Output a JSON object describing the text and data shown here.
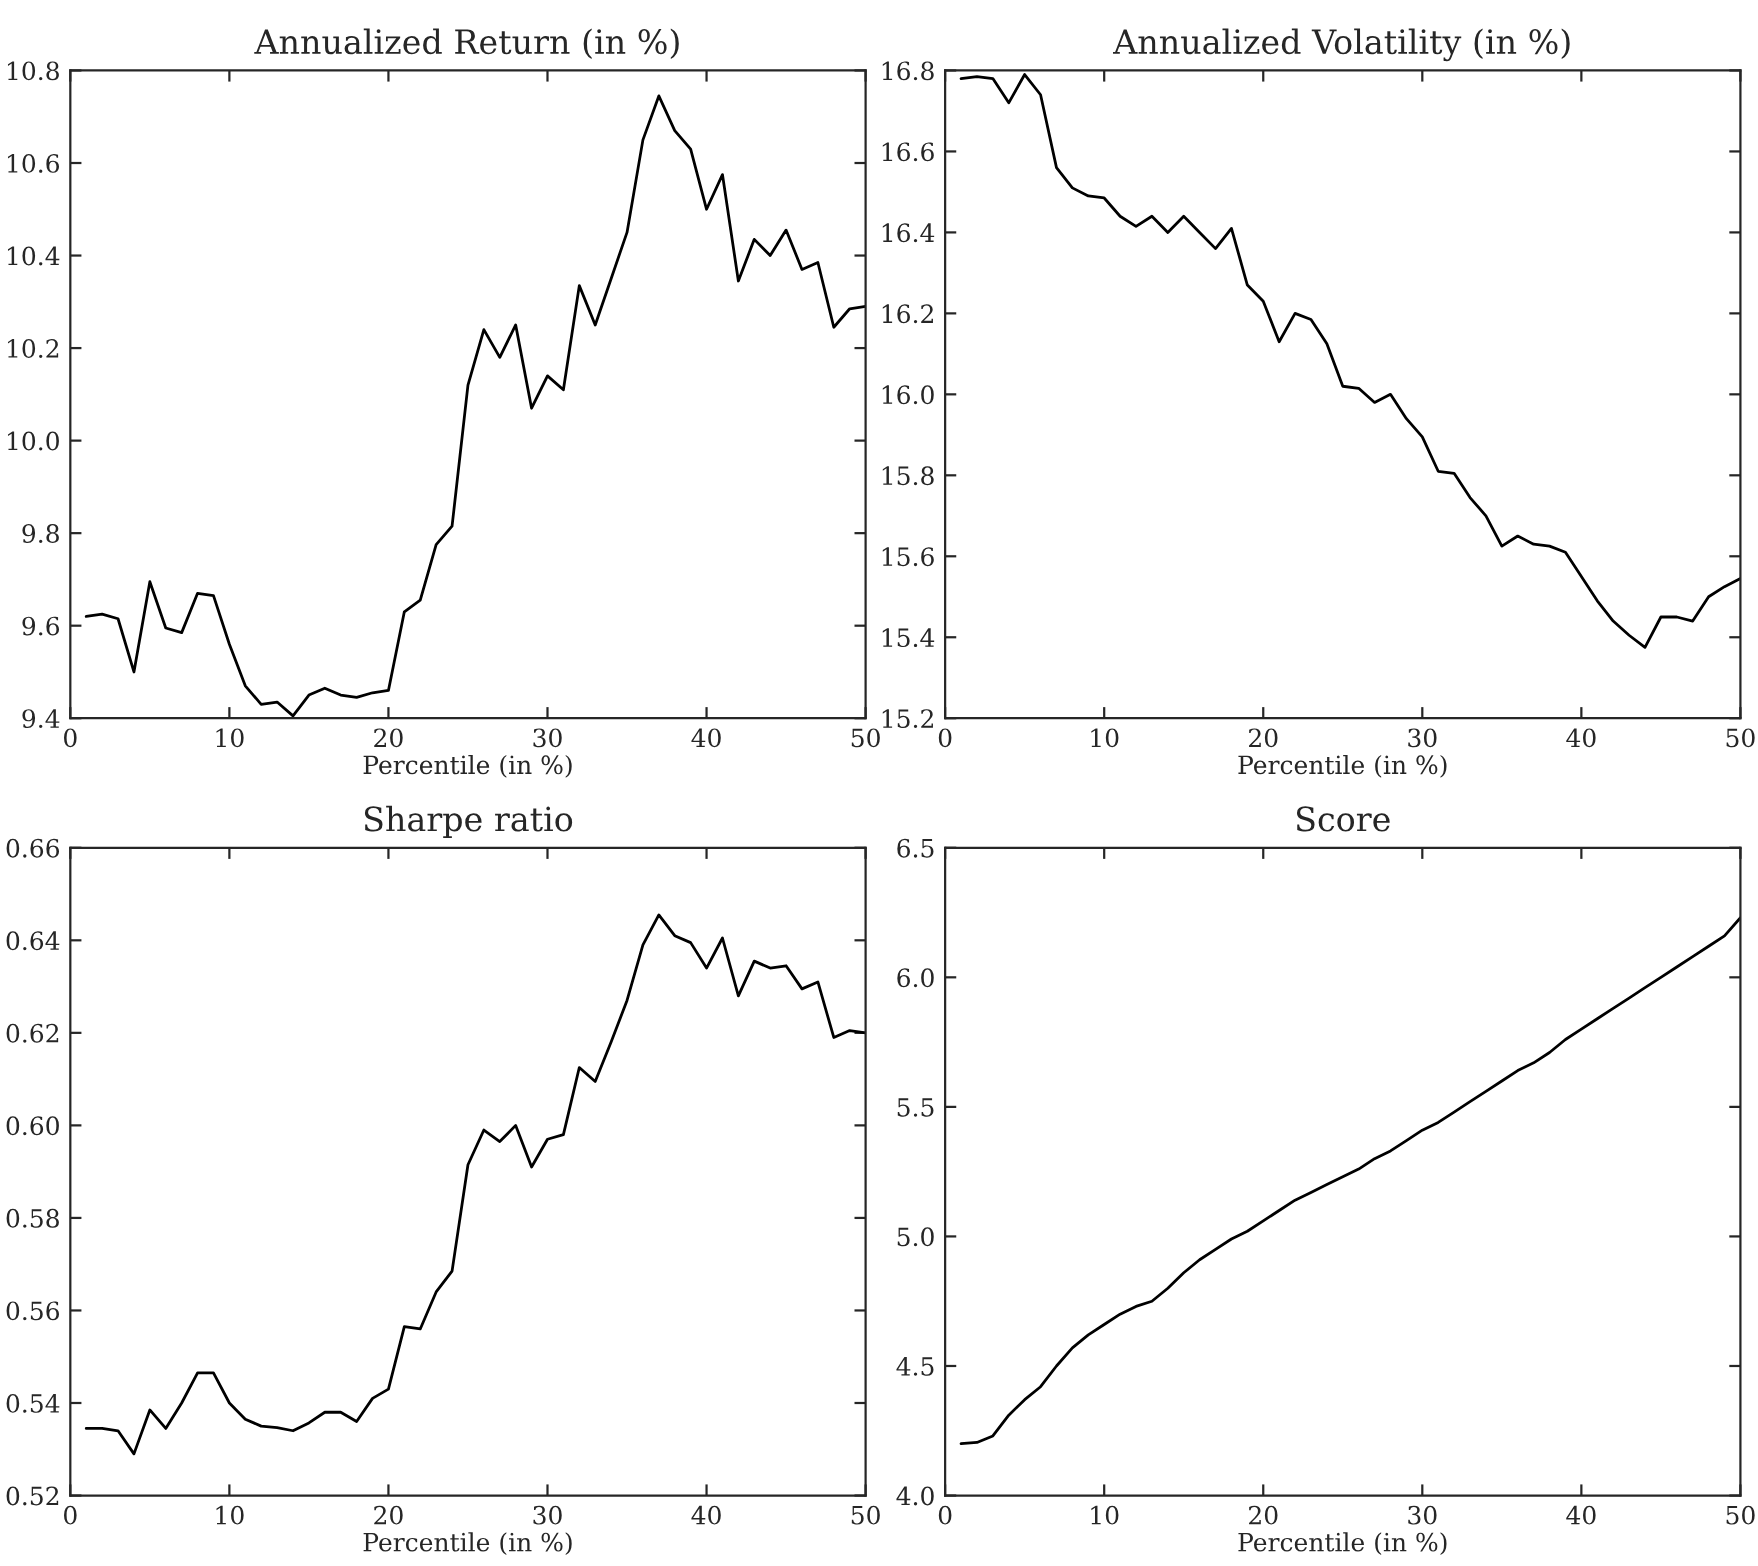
{
  "chart_data": [
    {
      "type": "line",
      "title": "Annualized Return (in %)",
      "xlabel": "Percentile (in %)",
      "color": "#000000",
      "xlim": [
        0,
        50
      ],
      "xticks": [
        0,
        10,
        20,
        30,
        40,
        50
      ],
      "ylim": [
        9.4,
        10.8
      ],
      "yticks": [
        {
          "value": 9.4,
          "label": "9.4"
        },
        {
          "value": 9.6,
          "label": "9.6"
        },
        {
          "value": 9.8,
          "label": "9.8"
        },
        {
          "value": 10.0,
          "label": "10.0"
        },
        {
          "value": 10.2,
          "label": "10.2"
        },
        {
          "value": 10.4,
          "label": "10.4"
        },
        {
          "value": 10.6,
          "label": "10.6"
        },
        {
          "value": 10.8,
          "label": "10.8"
        }
      ],
      "x": [
        1,
        2,
        3,
        4,
        5,
        6,
        7,
        8,
        9,
        10,
        11,
        12,
        13,
        14,
        15,
        16,
        17,
        18,
        19,
        20,
        21,
        22,
        23,
        24,
        25,
        26,
        27,
        28,
        29,
        30,
        31,
        32,
        33,
        34,
        35,
        36,
        37,
        38,
        39,
        40,
        41,
        42,
        43,
        44,
        45,
        46,
        47,
        48,
        49,
        50
      ],
      "values": [
        9.62,
        9.625,
        9.615,
        9.5,
        9.695,
        9.595,
        9.585,
        9.67,
        9.665,
        9.56,
        9.47,
        9.43,
        9.435,
        9.405,
        9.45,
        9.465,
        9.45,
        9.445,
        9.455,
        9.46,
        9.63,
        9.655,
        9.775,
        9.815,
        10.12,
        10.24,
        10.18,
        10.25,
        10.07,
        10.14,
        10.11,
        10.335,
        10.25,
        10.35,
        10.45,
        10.65,
        10.745,
        10.67,
        10.63,
        10.5,
        10.575,
        10.345,
        10.435,
        10.4,
        10.455,
        10.37,
        10.385,
        10.245,
        10.285,
        10.29
      ]
    },
    {
      "type": "line",
      "title": "Annualized Volatility (in %)",
      "xlabel": "Percentile (in %)",
      "color": "#000000",
      "xlim": [
        0,
        50
      ],
      "xticks": [
        0,
        10,
        20,
        30,
        40,
        50
      ],
      "ylim": [
        15.2,
        16.8
      ],
      "yticks": [
        {
          "value": 15.2,
          "label": "15.2"
        },
        {
          "value": 15.4,
          "label": "15.4"
        },
        {
          "value": 15.6,
          "label": "15.6"
        },
        {
          "value": 15.8,
          "label": "15.8"
        },
        {
          "value": 16.0,
          "label": "16.0"
        },
        {
          "value": 16.2,
          "label": "16.2"
        },
        {
          "value": 16.4,
          "label": "16.4"
        },
        {
          "value": 16.6,
          "label": "16.6"
        },
        {
          "value": 16.8,
          "label": "16.8"
        }
      ],
      "x": [
        1,
        2,
        3,
        4,
        5,
        6,
        7,
        8,
        9,
        10,
        11,
        12,
        13,
        14,
        15,
        16,
        17,
        18,
        19,
        20,
        21,
        22,
        23,
        24,
        25,
        26,
        27,
        28,
        29,
        30,
        31,
        32,
        33,
        34,
        35,
        36,
        37,
        38,
        39,
        40,
        41,
        42,
        43,
        44,
        45,
        46,
        47,
        48,
        49,
        50
      ],
      "values": [
        16.78,
        16.785,
        16.78,
        16.72,
        16.79,
        16.74,
        16.56,
        16.51,
        16.49,
        16.485,
        16.44,
        16.415,
        16.44,
        16.4,
        16.44,
        16.4,
        16.36,
        16.41,
        16.27,
        16.23,
        16.13,
        16.2,
        16.185,
        16.125,
        16.02,
        16.015,
        15.98,
        16.0,
        15.94,
        15.895,
        15.81,
        15.805,
        15.745,
        15.7,
        15.625,
        15.65,
        15.63,
        15.625,
        15.61,
        15.55,
        15.49,
        15.44,
        15.405,
        15.375,
        15.45,
        15.45,
        15.44,
        15.5,
        15.525,
        15.545
      ]
    },
    {
      "type": "line",
      "title": "Sharpe ratio",
      "xlabel": "Percentile (in %)",
      "color": "#000000",
      "xlim": [
        0,
        50
      ],
      "xticks": [
        0,
        10,
        20,
        30,
        40,
        50
      ],
      "ylim": [
        0.52,
        0.66
      ],
      "yticks": [
        {
          "value": 0.52,
          "label": "0.52"
        },
        {
          "value": 0.54,
          "label": "0.54"
        },
        {
          "value": 0.56,
          "label": "0.56"
        },
        {
          "value": 0.58,
          "label": "0.58"
        },
        {
          "value": 0.6,
          "label": "0.60"
        },
        {
          "value": 0.62,
          "label": "0.62"
        },
        {
          "value": 0.64,
          "label": "0.64"
        },
        {
          "value": 0.66,
          "label": "0.66"
        }
      ],
      "x": [
        1,
        2,
        3,
        4,
        5,
        6,
        7,
        8,
        9,
        10,
        11,
        12,
        13,
        14,
        15,
        16,
        17,
        18,
        19,
        20,
        21,
        22,
        23,
        24,
        25,
        26,
        27,
        28,
        29,
        30,
        31,
        32,
        33,
        34,
        35,
        36,
        37,
        38,
        39,
        40,
        41,
        42,
        43,
        44,
        45,
        46,
        47,
        48,
        49,
        50
      ],
      "values": [
        0.5345,
        0.5345,
        0.534,
        0.529,
        0.5385,
        0.5345,
        0.54,
        0.5465,
        0.5465,
        0.54,
        0.5365,
        0.535,
        0.5347,
        0.534,
        0.5357,
        0.538,
        0.538,
        0.536,
        0.541,
        0.543,
        0.5565,
        0.556,
        0.564,
        0.5685,
        0.5915,
        0.599,
        0.5965,
        0.6,
        0.591,
        0.597,
        0.598,
        0.6125,
        0.6095,
        0.618,
        0.627,
        0.639,
        0.6455,
        0.641,
        0.6395,
        0.634,
        0.6405,
        0.628,
        0.6355,
        0.634,
        0.6345,
        0.6295,
        0.631,
        0.619,
        0.6205,
        0.62
      ]
    },
    {
      "type": "line",
      "title": "Score",
      "xlabel": "Percentile (in %)",
      "color": "#000000",
      "xlim": [
        0,
        50
      ],
      "xticks": [
        0,
        10,
        20,
        30,
        40,
        50
      ],
      "ylim": [
        4.0,
        6.5
      ],
      "yticks": [
        {
          "value": 4.0,
          "label": "4.0"
        },
        {
          "value": 4.5,
          "label": "4.5"
        },
        {
          "value": 5.0,
          "label": "5.0"
        },
        {
          "value": 5.5,
          "label": "5.5"
        },
        {
          "value": 6.0,
          "label": "6.0"
        },
        {
          "value": 6.5,
          "label": "6.5"
        }
      ],
      "x": [
        1,
        2,
        3,
        4,
        5,
        6,
        7,
        8,
        9,
        10,
        11,
        12,
        13,
        14,
        15,
        16,
        17,
        18,
        19,
        20,
        21,
        22,
        23,
        24,
        25,
        26,
        27,
        28,
        29,
        30,
        31,
        32,
        33,
        34,
        35,
        36,
        37,
        38,
        39,
        40,
        41,
        42,
        43,
        44,
        45,
        46,
        47,
        48,
        49,
        50
      ],
      "values": [
        4.2,
        4.205,
        4.23,
        4.31,
        4.37,
        4.42,
        4.5,
        4.57,
        4.62,
        4.66,
        4.7,
        4.73,
        4.75,
        4.8,
        4.86,
        4.91,
        4.95,
        4.99,
        5.02,
        5.06,
        5.1,
        5.14,
        5.17,
        5.2,
        5.23,
        5.26,
        5.3,
        5.33,
        5.37,
        5.41,
        5.44,
        5.48,
        5.52,
        5.56,
        5.6,
        5.64,
        5.67,
        5.71,
        5.76,
        5.8,
        5.84,
        5.88,
        5.92,
        5.96,
        6.0,
        6.04,
        6.08,
        6.12,
        6.16,
        6.23
      ]
    }
  ]
}
